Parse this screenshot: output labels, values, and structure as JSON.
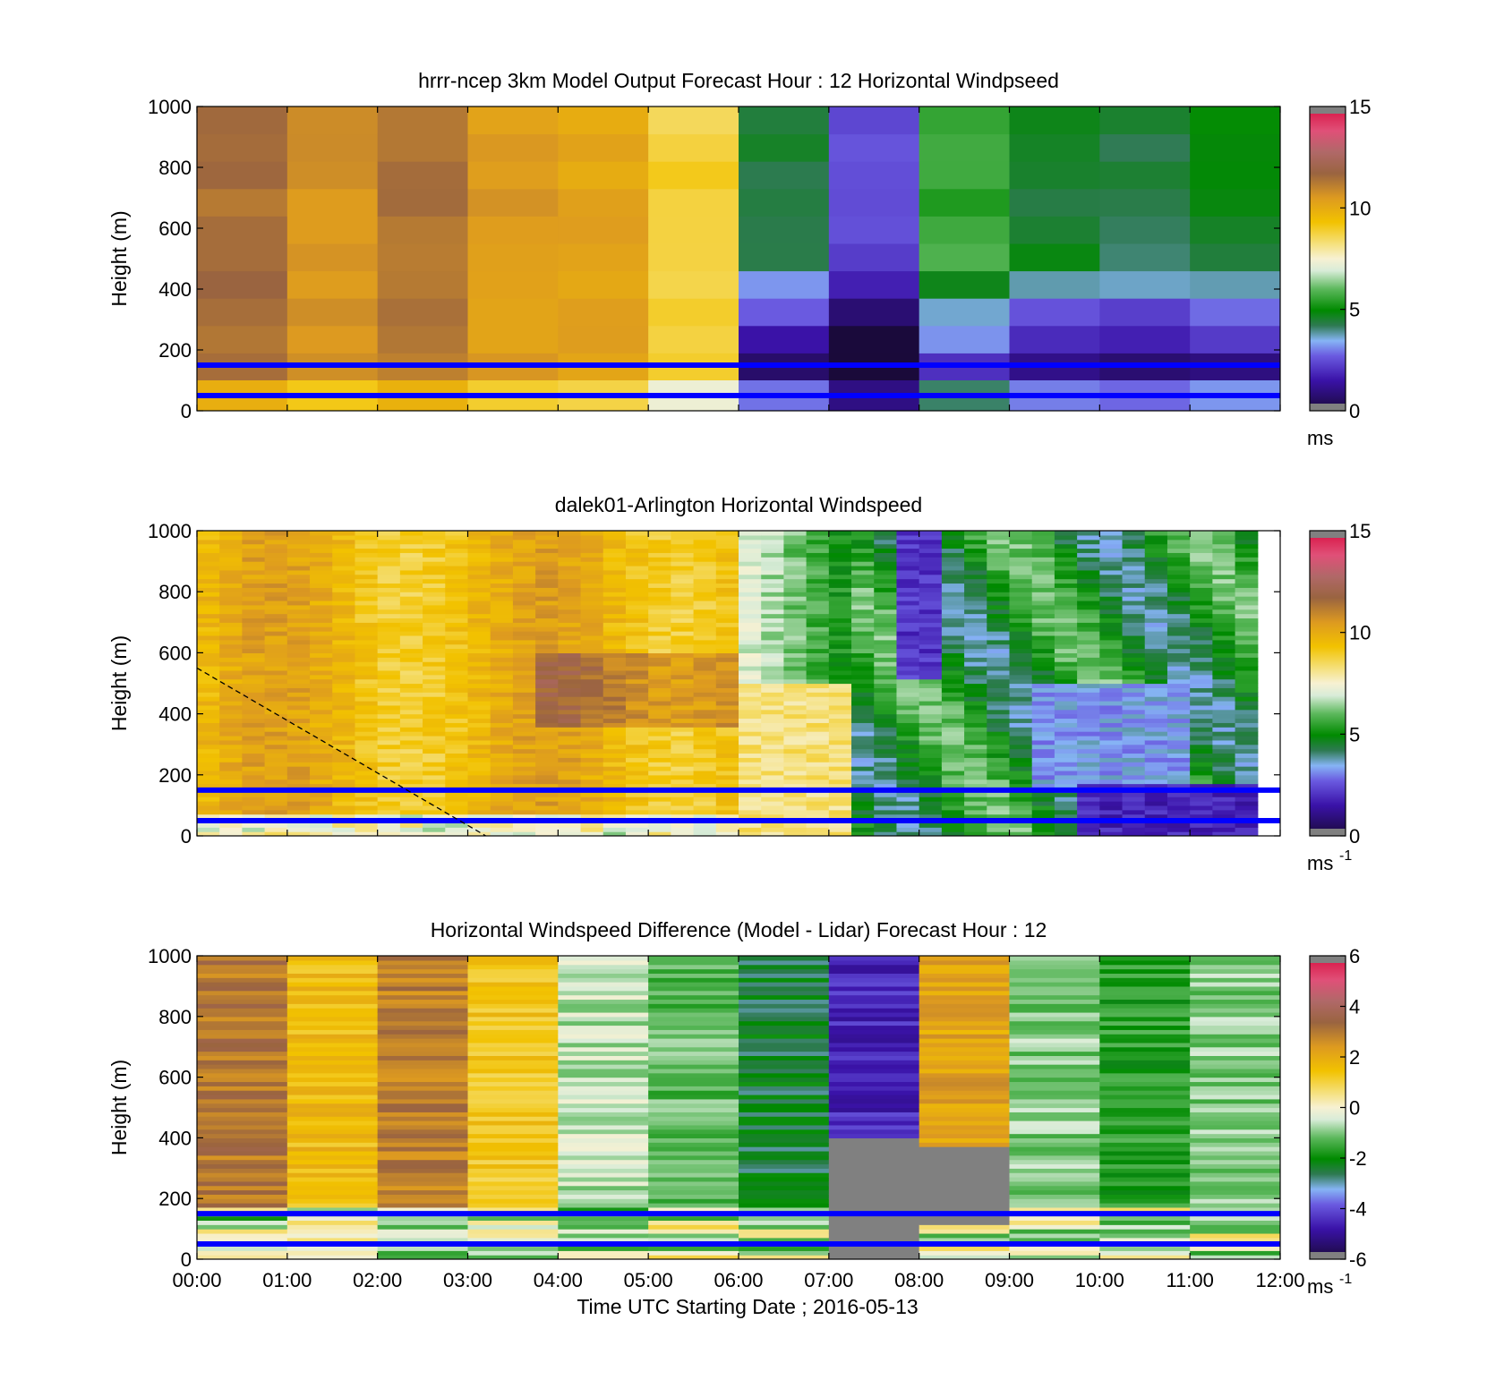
{
  "chart_data": [
    {
      "type": "heatmap",
      "title": "hrrr-ncep 3km Model Output   Forecast Hour : 12 Horizontal Windpseed",
      "ylabel": "Height (m)",
      "xlabel": "",
      "y_ticks": [
        "0",
        "200",
        "400",
        "600",
        "800",
        "1000"
      ],
      "ylim": [
        0,
        1000
      ],
      "x_range_hours": [
        0,
        12
      ],
      "x_ticks": [],
      "colorbar": {
        "ticks": [
          "0",
          "5",
          "10",
          "15"
        ],
        "range": [
          0,
          15
        ],
        "unit": "ms"
      },
      "reference_lines_m": [
        150,
        50
      ],
      "reference_line_color": "#0000ff",
      "columns_hours": [
        0,
        1,
        2,
        3,
        4,
        5,
        6,
        7,
        8,
        9,
        10,
        11
      ],
      "cells": [
        {
          "hour": 0,
          "v": 11.4
        },
        {
          "hour": 1,
          "v": 10.6
        },
        {
          "hour": 2,
          "v": 11.3
        },
        {
          "hour": 3,
          "v": 10.4
        },
        {
          "hour": 4,
          "v": 10.2
        },
        {
          "hour": 5,
          "v": 8.8
        },
        {
          "hour": 6,
          "v": 4.4
        },
        {
          "hour": 7,
          "v": 2.5
        },
        {
          "hour": 8,
          "v": 5.6
        },
        {
          "hour": 9,
          "v": 4.5
        },
        {
          "hour": 10,
          "v": 4.3
        },
        {
          "hour": 11,
          "v": 4.7
        }
      ]
    },
    {
      "type": "heatmap",
      "title": "dalek01-Arlington  Horizontal Windspeed",
      "ylabel": "Height (m)",
      "xlabel": "",
      "y_ticks": [
        "0",
        "200",
        "400",
        "600",
        "800",
        "1000"
      ],
      "ylim": [
        0,
        1000
      ],
      "x_range_hours": [
        0,
        12
      ],
      "x_ticks": [],
      "colorbar": {
        "ticks": [
          "0",
          "5",
          "10",
          "15"
        ],
        "range": [
          0,
          15
        ],
        "unit": "ms",
        "unit_exponent": "-1"
      },
      "reference_lines_m": [
        150,
        50
      ],
      "reference_line_color": "#0000ff",
      "dashed_line": [
        {
          "hour": 0,
          "height_m": 550
        },
        {
          "hour": 3.2,
          "height_m": 0
        }
      ]
    },
    {
      "type": "heatmap",
      "title": "Horizontal Windspeed Difference (Model - Lidar) Forecast Hour : 12",
      "ylabel": "Height (m)",
      "xlabel": "Time UTC  Starting Date ; 2016-05-13",
      "y_ticks": [
        "0",
        "200",
        "400",
        "600",
        "800",
        "1000"
      ],
      "ylim": [
        0,
        1000
      ],
      "x_range_hours": [
        0,
        12
      ],
      "x_ticks": [
        "00:00",
        "01:00",
        "02:00",
        "03:00",
        "04:00",
        "05:00",
        "06:00",
        "07:00",
        "08:00",
        "09:00",
        "10:00",
        "11:00",
        "12:00"
      ],
      "colorbar": {
        "ticks": [
          "-6",
          "-4",
          "-2",
          "0",
          "2",
          "4",
          "6"
        ],
        "range": [
          -6,
          6
        ],
        "unit": "ms",
        "unit_exponent": "-1"
      },
      "reference_lines_m": [
        150,
        50
      ],
      "reference_line_color": "#0000ff"
    }
  ]
}
